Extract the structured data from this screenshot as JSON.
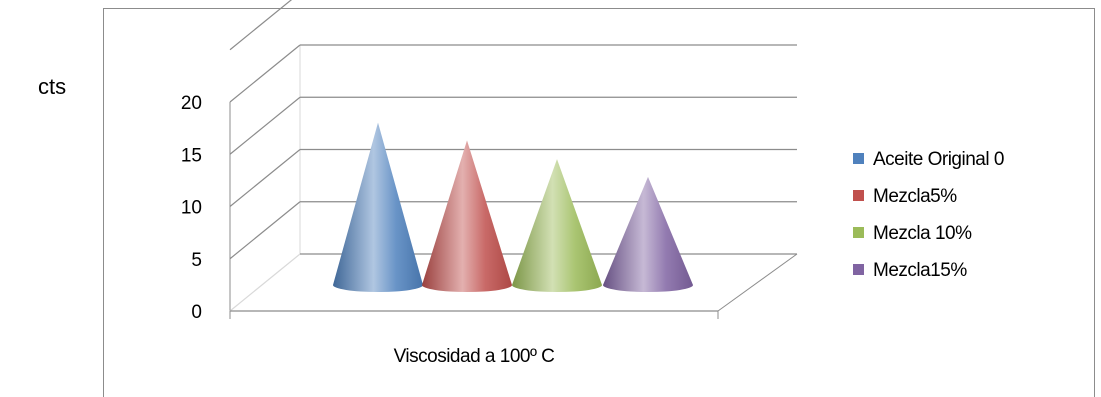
{
  "unit_label": "cts",
  "chart_data": {
    "type": "bar",
    "style": "3d-cone",
    "categories": [
      "Viscosidad a 100º C"
    ],
    "series": [
      {
        "name": "Aceite Original 0",
        "values": [
          16.5
        ],
        "color": "#4f81bd"
      },
      {
        "name": "Mezcla5%",
        "values": [
          14.8
        ],
        "color": "#c0504d"
      },
      {
        "name": "Mezcla 10%",
        "values": [
          13.0
        ],
        "color": "#9bbb59"
      },
      {
        "name": "Mezcla15%",
        "values": [
          11.3
        ],
        "color": "#8064a2"
      }
    ],
    "ylim": [
      0,
      20
    ],
    "yticks": [
      "0",
      "5",
      "10",
      "15",
      "20"
    ],
    "xlabel": "",
    "ylabel": "",
    "grid": true,
    "legend": "right"
  }
}
